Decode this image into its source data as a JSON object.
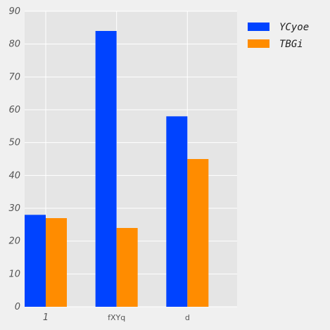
{
  "chart_data": {
    "type": "bar",
    "categories": [
      "1",
      "fXYq",
      "d"
    ],
    "series": [
      {
        "name": "YCyoe",
        "color": "#0043ff",
        "values": [
          28,
          84,
          58
        ]
      },
      {
        "name": "TBGi",
        "color": "#ff8c00",
        "values": [
          27,
          24,
          45
        ]
      }
    ],
    "title": "",
    "xlabel": "",
    "ylabel": "",
    "ylim": [
      0,
      90
    ],
    "yticks": [
      0,
      10,
      20,
      30,
      40,
      50,
      60,
      70,
      80,
      90
    ],
    "grid": true,
    "legend": "top-right outside",
    "plot_bg": "#e5e5e5"
  }
}
